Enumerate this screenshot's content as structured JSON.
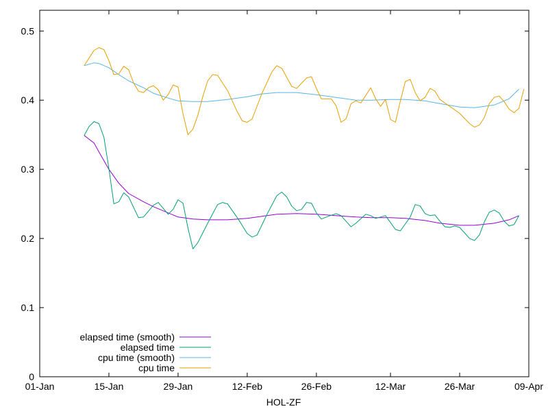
{
  "chart_data": {
    "type": "line",
    "title": "",
    "xlabel": "HOL-ZF",
    "ylabel": "",
    "x_ticks": [
      "01-Jan",
      "15-Jan",
      "29-Jan",
      "12-Feb",
      "26-Feb",
      "12-Mar",
      "26-Mar",
      "09-Apr"
    ],
    "x_range": [
      "01-Jan",
      "09-Apr"
    ],
    "y_ticks": [
      "0",
      "0.1",
      "0.2",
      "0.3",
      "0.4",
      "0.5"
    ],
    "ylim": [
      0,
      0.53
    ],
    "grid": false,
    "legend_position": "bottom-left",
    "series": [
      {
        "name": "elapsed time (smooth)",
        "color": "#9400d3",
        "points": [
          [
            "10-Jan",
            0.349
          ],
          [
            "12-Jan",
            0.338
          ],
          [
            "13-Jan",
            0.325
          ],
          [
            "15-Jan",
            0.3
          ],
          [
            "17-Jan",
            0.28
          ],
          [
            "19-Jan",
            0.265
          ],
          [
            "22-Jan",
            0.253
          ],
          [
            "24-Jan",
            0.246
          ],
          [
            "27-Jan",
            0.237
          ],
          [
            "29-Jan",
            0.231
          ],
          [
            "01-Feb",
            0.228
          ],
          [
            "04-Feb",
            0.227
          ],
          [
            "08-Feb",
            0.227
          ],
          [
            "12-Feb",
            0.229
          ],
          [
            "15-Feb",
            0.232
          ],
          [
            "18-Feb",
            0.235
          ],
          [
            "22-Feb",
            0.236
          ],
          [
            "26-Feb",
            0.235
          ],
          [
            "01-Mar",
            0.233
          ],
          [
            "05-Mar",
            0.231
          ],
          [
            "08-Mar",
            0.23
          ],
          [
            "12-Mar",
            0.23
          ],
          [
            "15-Mar",
            0.229
          ],
          [
            "19-Mar",
            0.226
          ],
          [
            "22-Mar",
            0.222
          ],
          [
            "26-Mar",
            0.219
          ],
          [
            "29-Mar",
            0.219
          ],
          [
            "02-Apr",
            0.222
          ],
          [
            "05-Apr",
            0.227
          ],
          [
            "07-Apr",
            0.233
          ]
        ]
      },
      {
        "name": "elapsed time",
        "color": "#009e73",
        "points": [
          [
            "10-Jan",
            0.349
          ],
          [
            "11-Jan",
            0.362
          ],
          [
            "12-Jan",
            0.369
          ],
          [
            "13-Jan",
            0.366
          ],
          [
            "14-Jan",
            0.346
          ],
          [
            "15-Jan",
            0.301
          ],
          [
            "16-Jan",
            0.25
          ],
          [
            "17-Jan",
            0.253
          ],
          [
            "18-Jan",
            0.266
          ],
          [
            "19-Jan",
            0.26
          ],
          [
            "21-Jan",
            0.23
          ],
          [
            "22-Jan",
            0.231
          ],
          [
            "24-Jan",
            0.248
          ],
          [
            "25-Jan",
            0.252
          ],
          [
            "27-Jan",
            0.235
          ],
          [
            "28-Jan",
            0.242
          ],
          [
            "29-Jan",
            0.256
          ],
          [
            "30-Jan",
            0.251
          ],
          [
            "31-Jan",
            0.215
          ],
          [
            "01-Feb",
            0.185
          ],
          [
            "02-Feb",
            0.194
          ],
          [
            "04-Feb",
            0.222
          ],
          [
            "06-Feb",
            0.249
          ],
          [
            "07-Feb",
            0.252
          ],
          [
            "08-Feb",
            0.25
          ],
          [
            "10-Feb",
            0.23
          ],
          [
            "12-Feb",
            0.207
          ],
          [
            "13-Feb",
            0.202
          ],
          [
            "14-Feb",
            0.205
          ],
          [
            "16-Feb",
            0.235
          ],
          [
            "18-Feb",
            0.262
          ],
          [
            "19-Feb",
            0.267
          ],
          [
            "20-Feb",
            0.26
          ],
          [
            "21-Feb",
            0.247
          ],
          [
            "22-Feb",
            0.24
          ],
          [
            "23-Feb",
            0.242
          ],
          [
            "24-Feb",
            0.252
          ],
          [
            "25-Feb",
            0.251
          ],
          [
            "26-Feb",
            0.237
          ],
          [
            "27-Feb",
            0.228
          ],
          [
            "28-Feb",
            0.231
          ],
          [
            "01-Mar",
            0.236
          ],
          [
            "02-Mar",
            0.233
          ],
          [
            "04-Mar",
            0.217
          ],
          [
            "05-Mar",
            0.222
          ],
          [
            "07-Mar",
            0.235
          ],
          [
            "08-Mar",
            0.233
          ],
          [
            "09-Mar",
            0.229
          ],
          [
            "11-Mar",
            0.233
          ],
          [
            "13-Mar",
            0.213
          ],
          [
            "14-Mar",
            0.211
          ],
          [
            "16-Mar",
            0.231
          ],
          [
            "17-Mar",
            0.249
          ],
          [
            "18-Mar",
            0.247
          ],
          [
            "19-Mar",
            0.236
          ],
          [
            "20-Mar",
            0.233
          ],
          [
            "21-Mar",
            0.234
          ],
          [
            "22-Mar",
            0.225
          ],
          [
            "23-Mar",
            0.217
          ],
          [
            "24-Mar",
            0.216
          ],
          [
            "25-Mar",
            0.218
          ],
          [
            "26-Mar",
            0.216
          ],
          [
            "28-Mar",
            0.2
          ],
          [
            "29-Mar",
            0.197
          ],
          [
            "30-Mar",
            0.205
          ],
          [
            "31-Mar",
            0.224
          ],
          [
            "01-Apr",
            0.238
          ],
          [
            "02-Apr",
            0.241
          ],
          [
            "03-Apr",
            0.237
          ],
          [
            "04-Apr",
            0.225
          ],
          [
            "05-Apr",
            0.218
          ],
          [
            "06-Apr",
            0.22
          ],
          [
            "07-Apr",
            0.233
          ]
        ]
      },
      {
        "name": "cpu time (smooth)",
        "color": "#56b4e9",
        "points": [
          [
            "10-Jan",
            0.45
          ],
          [
            "12-Jan",
            0.454
          ],
          [
            "13-Jan",
            0.453
          ],
          [
            "15-Jan",
            0.447
          ],
          [
            "17-Jan",
            0.437
          ],
          [
            "19-Jan",
            0.428
          ],
          [
            "22-Jan",
            0.418
          ],
          [
            "24-Jan",
            0.41
          ],
          [
            "27-Jan",
            0.403
          ],
          [
            "29-Jan",
            0.399
          ],
          [
            "01-Feb",
            0.398
          ],
          [
            "04-Feb",
            0.398
          ],
          [
            "08-Feb",
            0.401
          ],
          [
            "12-Feb",
            0.405
          ],
          [
            "15-Feb",
            0.409
          ],
          [
            "18-Feb",
            0.411
          ],
          [
            "22-Feb",
            0.411
          ],
          [
            "26-Feb",
            0.408
          ],
          [
            "01-Mar",
            0.404
          ],
          [
            "05-Mar",
            0.4
          ],
          [
            "08-Mar",
            0.4
          ],
          [
            "12-Mar",
            0.401
          ],
          [
            "15-Mar",
            0.401
          ],
          [
            "19-Mar",
            0.399
          ],
          [
            "22-Mar",
            0.395
          ],
          [
            "26-Mar",
            0.39
          ],
          [
            "29-Mar",
            0.389
          ],
          [
            "02-Apr",
            0.393
          ],
          [
            "05-Apr",
            0.402
          ],
          [
            "07-Apr",
            0.416
          ]
        ]
      },
      {
        "name": "cpu time",
        "color": "#e69f00",
        "points": [
          [
            "10-Jan",
            0.45
          ],
          [
            "11-Jan",
            0.461
          ],
          [
            "12-Jan",
            0.472
          ],
          [
            "13-Jan",
            0.476
          ],
          [
            "14-Jan",
            0.473
          ],
          [
            "15-Jan",
            0.457
          ],
          [
            "16-Jan",
            0.437
          ],
          [
            "17-Jan",
            0.438
          ],
          [
            "18-Jan",
            0.449
          ],
          [
            "19-Jan",
            0.444
          ],
          [
            "20-Jan",
            0.425
          ],
          [
            "21-Jan",
            0.413
          ],
          [
            "22-Jan",
            0.411
          ],
          [
            "23-Jan",
            0.418
          ],
          [
            "24-Jan",
            0.421
          ],
          [
            "25-Jan",
            0.415
          ],
          [
            "26-Jan",
            0.4
          ],
          [
            "27-Jan",
            0.408
          ],
          [
            "28-Jan",
            0.422
          ],
          [
            "29-Jan",
            0.419
          ],
          [
            "30-Jan",
            0.38
          ],
          [
            "31-Jan",
            0.35
          ],
          [
            "01-Feb",
            0.358
          ],
          [
            "02-Feb",
            0.378
          ],
          [
            "03-Feb",
            0.405
          ],
          [
            "04-Feb",
            0.428
          ],
          [
            "05-Feb",
            0.437
          ],
          [
            "06-Feb",
            0.436
          ],
          [
            "08-Feb",
            0.414
          ],
          [
            "10-Feb",
            0.383
          ],
          [
            "11-Feb",
            0.37
          ],
          [
            "12-Feb",
            0.368
          ],
          [
            "13-Feb",
            0.373
          ],
          [
            "15-Feb",
            0.41
          ],
          [
            "17-Feb",
            0.441
          ],
          [
            "18-Feb",
            0.45
          ],
          [
            "19-Feb",
            0.446
          ],
          [
            "21-Feb",
            0.42
          ],
          [
            "22-Feb",
            0.417
          ],
          [
            "24-Feb",
            0.432
          ],
          [
            "25-Feb",
            0.434
          ],
          [
            "26-Feb",
            0.417
          ],
          [
            "27-Feb",
            0.402
          ],
          [
            "29-Feb",
            0.402
          ],
          [
            "01-Mar",
            0.392
          ],
          [
            "02-Mar",
            0.368
          ],
          [
            "03-Mar",
            0.373
          ],
          [
            "04-Mar",
            0.395
          ],
          [
            "05-Mar",
            0.399
          ],
          [
            "06-Mar",
            0.396
          ],
          [
            "07-Mar",
            0.407
          ],
          [
            "08-Mar",
            0.418
          ],
          [
            "09-Mar",
            0.402
          ],
          [
            "10-Mar",
            0.391
          ],
          [
            "11-Mar",
            0.401
          ],
          [
            "12-Mar",
            0.372
          ],
          [
            "13-Mar",
            0.368
          ],
          [
            "14-Mar",
            0.399
          ],
          [
            "15-Mar",
            0.427
          ],
          [
            "16-Mar",
            0.43
          ],
          [
            "17-Mar",
            0.411
          ],
          [
            "18-Mar",
            0.399
          ],
          [
            "19-Mar",
            0.404
          ],
          [
            "20-Mar",
            0.417
          ],
          [
            "21-Mar",
            0.413
          ],
          [
            "22-Mar",
            0.401
          ],
          [
            "24-Mar",
            0.391
          ],
          [
            "26-Mar",
            0.381
          ],
          [
            "28-Mar",
            0.366
          ],
          [
            "29-Mar",
            0.361
          ],
          [
            "30-Mar",
            0.364
          ],
          [
            "31-Mar",
            0.375
          ],
          [
            "01-Apr",
            0.395
          ],
          [
            "02-Apr",
            0.404
          ],
          [
            "03-Apr",
            0.406
          ],
          [
            "04-Apr",
            0.398
          ],
          [
            "05-Apr",
            0.387
          ],
          [
            "06-Apr",
            0.382
          ],
          [
            "07-Apr",
            0.388
          ],
          [
            "08-Apr",
            0.416
          ]
        ]
      }
    ]
  }
}
